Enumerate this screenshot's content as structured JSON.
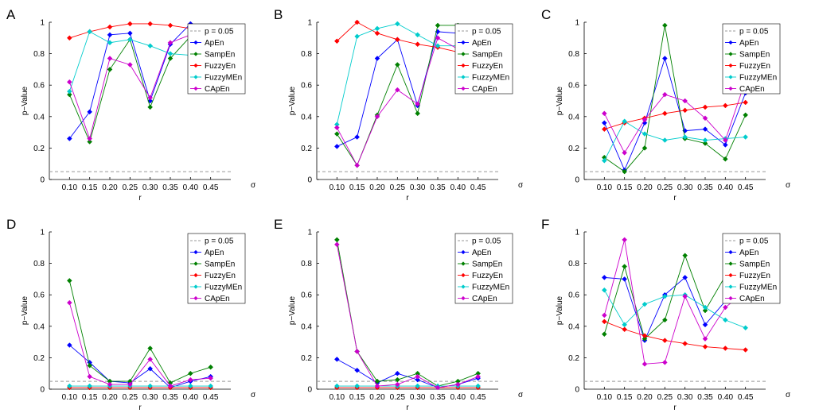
{
  "figure": {
    "legend_labels": [
      "p = 0.05",
      "ApEn",
      "SampEn",
      "FuzzyEn",
      "FuzzyMEn",
      "CApEn"
    ],
    "ylabel": "p−Value",
    "xlabel": "r",
    "sigma_label": "σ",
    "threshold": 0.05,
    "colors": {
      "ApEn": "#0000ff",
      "SampEn": "#008000",
      "FuzzyEn": "#ff0000",
      "FuzzyMEn": "#00cccc",
      "CApEn": "#cc00cc",
      "threshold": "#999999"
    }
  },
  "chart_data": [
    {
      "type": "line",
      "panel": "A",
      "categories": [
        "0.10",
        "0.15",
        "0.20",
        "0.25",
        "0.30",
        "0.35",
        "0.40",
        "0.45"
      ],
      "yticks": [
        "0",
        "0.2",
        "0.4",
        "0.6",
        "0.8",
        "1"
      ],
      "ylim": [
        0,
        1
      ],
      "xlabel": "r",
      "ylabel": "p−Value",
      "legend_position": "top-right",
      "series": [
        {
          "name": "ApEn",
          "values": [
            0.26,
            0.43,
            0.92,
            0.93,
            0.5,
            0.86,
            0.99,
            null
          ]
        },
        {
          "name": "SampEn",
          "values": [
            0.54,
            0.24,
            0.7,
            0.89,
            0.46,
            0.77,
            0.91,
            null
          ]
        },
        {
          "name": "FuzzyEn",
          "values": [
            0.9,
            0.94,
            0.97,
            0.99,
            0.99,
            0.98,
            0.96,
            null
          ]
        },
        {
          "name": "FuzzyMEn",
          "values": [
            0.56,
            0.94,
            0.87,
            0.89,
            0.85,
            0.8,
            0.79,
            null
          ]
        },
        {
          "name": "CApEn",
          "values": [
            0.62,
            0.26,
            0.77,
            0.73,
            0.52,
            0.87,
            0.92,
            null
          ]
        }
      ]
    },
    {
      "type": "line",
      "panel": "B",
      "categories": [
        "0.10",
        "0.15",
        "0.20",
        "0.25",
        "0.30",
        "0.35",
        "0.40",
        "0.45"
      ],
      "yticks": [
        "0",
        "0.2",
        "0.4",
        "0.6",
        "0.8",
        "1"
      ],
      "ylim": [
        0,
        1
      ],
      "xlabel": "r",
      "ylabel": "p−Value",
      "legend_position": "top-right",
      "series": [
        {
          "name": "ApEn",
          "values": [
            0.21,
            0.27,
            0.77,
            0.89,
            0.47,
            0.94,
            0.93,
            null
          ]
        },
        {
          "name": "SampEn",
          "values": [
            0.29,
            0.09,
            0.41,
            0.73,
            0.42,
            0.98,
            0.98,
            null
          ]
        },
        {
          "name": "FuzzyEn",
          "values": [
            0.88,
            1.0,
            0.93,
            0.89,
            0.86,
            0.84,
            0.81,
            null
          ]
        },
        {
          "name": "FuzzyMEn",
          "values": [
            0.35,
            0.91,
            0.96,
            0.99,
            0.92,
            0.85,
            0.85,
            null
          ]
        },
        {
          "name": "CApEn",
          "values": [
            0.33,
            0.09,
            0.4,
            0.57,
            0.48,
            0.9,
            0.83,
            null
          ]
        }
      ]
    },
    {
      "type": "line",
      "panel": "C",
      "categories": [
        "0.10",
        "0.15",
        "0.20",
        "0.25",
        "0.30",
        "0.35",
        "0.40",
        "0.45"
      ],
      "yticks": [
        "0",
        "0.2",
        "0.4",
        "0.6",
        "0.8",
        "1"
      ],
      "ylim": [
        0,
        1
      ],
      "xlabel": "r",
      "ylabel": "p−Value",
      "legend_position": "top-right",
      "series": [
        {
          "name": "ApEn",
          "values": [
            0.36,
            0.06,
            0.36,
            0.77,
            0.31,
            0.32,
            0.22,
            0.55
          ]
        },
        {
          "name": "SampEn",
          "values": [
            0.14,
            0.05,
            0.2,
            0.98,
            0.26,
            0.23,
            0.13,
            0.41
          ]
        },
        {
          "name": "FuzzyEn",
          "values": [
            0.32,
            0.36,
            0.39,
            0.42,
            0.44,
            0.46,
            0.47,
            0.49
          ]
        },
        {
          "name": "FuzzyMEn",
          "values": [
            0.12,
            0.37,
            0.29,
            0.25,
            0.27,
            0.25,
            0.26,
            0.27
          ]
        },
        {
          "name": "CApEn",
          "values": [
            0.42,
            0.17,
            0.38,
            0.54,
            0.5,
            0.39,
            0.25,
            0.63
          ]
        }
      ]
    },
    {
      "type": "line",
      "panel": "D",
      "categories": [
        "0.10",
        "0.15",
        "0.20",
        "0.25",
        "0.30",
        "0.35",
        "0.40",
        "0.45"
      ],
      "yticks": [
        "0",
        "0.2",
        "0.4",
        "0.6",
        "0.8",
        "1"
      ],
      "ylim": [
        0,
        1
      ],
      "xlabel": "r",
      "ylabel": "p−Value",
      "legend_position": "top-right",
      "series": [
        {
          "name": "ApEn",
          "values": [
            0.28,
            0.17,
            0.05,
            0.04,
            0.13,
            0.01,
            0.05,
            0.08
          ]
        },
        {
          "name": "SampEn",
          "values": [
            0.69,
            0.15,
            0.05,
            0.05,
            0.26,
            0.04,
            0.1,
            0.14
          ]
        },
        {
          "name": "FuzzyEn",
          "values": [
            0.01,
            0.01,
            0.01,
            0.01,
            0.01,
            0.01,
            0.01,
            0.01
          ]
        },
        {
          "name": "FuzzyMEn",
          "values": [
            0.02,
            0.02,
            0.02,
            0.02,
            0.02,
            0.02,
            0.02,
            0.02
          ]
        },
        {
          "name": "CApEn",
          "values": [
            0.55,
            0.08,
            0.03,
            0.03,
            0.19,
            0.02,
            0.06,
            0.07
          ]
        }
      ]
    },
    {
      "type": "line",
      "panel": "E",
      "categories": [
        "0.10",
        "0.15",
        "0.20",
        "0.25",
        "0.30",
        "0.35",
        "0.40",
        "0.45"
      ],
      "yticks": [
        "0",
        "0.2",
        "0.4",
        "0.6",
        "0.8",
        "1"
      ],
      "ylim": [
        0,
        1
      ],
      "xlabel": "r",
      "ylabel": "p−Value",
      "legend_position": "top-right",
      "series": [
        {
          "name": "ApEn",
          "values": [
            0.19,
            0.12,
            0.04,
            0.1,
            0.06,
            0.01,
            0.03,
            0.07
          ]
        },
        {
          "name": "SampEn",
          "values": [
            0.95,
            0.24,
            0.05,
            0.06,
            0.1,
            0.02,
            0.05,
            0.1
          ]
        },
        {
          "name": "FuzzyEn",
          "values": [
            0.01,
            0.01,
            0.01,
            0.01,
            0.01,
            0.01,
            0.01,
            0.01
          ]
        },
        {
          "name": "FuzzyMEn",
          "values": [
            0.02,
            0.02,
            0.02,
            0.02,
            0.02,
            0.02,
            0.02,
            0.02
          ]
        },
        {
          "name": "CApEn",
          "values": [
            0.92,
            0.24,
            0.02,
            0.03,
            0.08,
            0.01,
            0.03,
            0.08
          ]
        }
      ]
    },
    {
      "type": "line",
      "panel": "F",
      "categories": [
        "0.10",
        "0.15",
        "0.20",
        "0.25",
        "0.30",
        "0.35",
        "0.40",
        "0.45"
      ],
      "yticks": [
        "0",
        "0.2",
        "0.4",
        "0.6",
        "0.8",
        "1"
      ],
      "ylim": [
        0,
        1
      ],
      "xlabel": "r",
      "ylabel": "p−Value",
      "legend_position": "top-right",
      "series": [
        {
          "name": "ApEn",
          "values": [
            0.71,
            0.7,
            0.31,
            0.6,
            0.71,
            0.41,
            0.56,
            0.65
          ]
        },
        {
          "name": "SampEn",
          "values": [
            0.35,
            0.78,
            0.32,
            0.44,
            0.85,
            0.5,
            0.72,
            0.75
          ]
        },
        {
          "name": "FuzzyEn",
          "values": [
            0.43,
            0.38,
            0.34,
            0.31,
            0.29,
            0.27,
            0.26,
            0.25
          ]
        },
        {
          "name": "FuzzyMEn",
          "values": [
            0.63,
            0.41,
            0.54,
            0.59,
            0.6,
            0.52,
            0.44,
            0.39
          ]
        },
        {
          "name": "CApEn",
          "values": [
            0.47,
            0.95,
            0.16,
            0.17,
            0.59,
            0.32,
            0.52,
            0.62
          ]
        }
      ]
    }
  ]
}
